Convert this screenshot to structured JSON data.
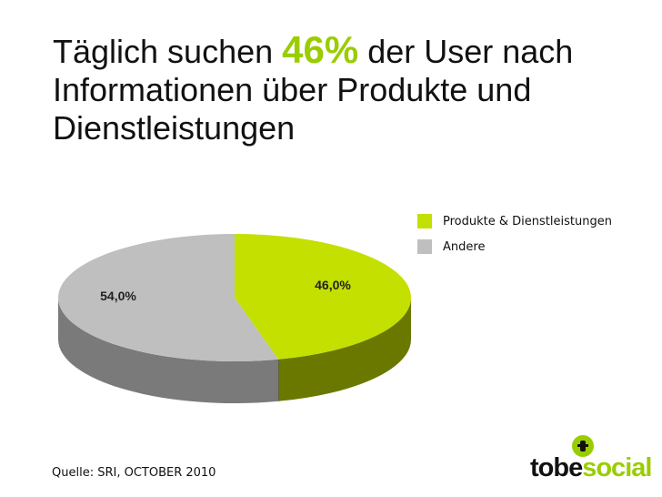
{
  "slide": {
    "title_part1": "Täglich suchen ",
    "title_highlight": "46%",
    "title_part2": " der User nach Informationen über Produkte und Dienstleistungen",
    "source": "Quelle: SRI, OCTOBER 2010"
  },
  "brand": {
    "logo_part1": "tobe",
    "logo_part2": "social",
    "accent": "#9acd00"
  },
  "chart_data": {
    "type": "pie",
    "title": "",
    "slices": [
      {
        "label": "Produkte & Dienstleistungen",
        "value": 46.0,
        "display": "46,0%",
        "color": "#c3e000",
        "side_color": "#6b7800"
      },
      {
        "label": "Andere",
        "value": 54.0,
        "display": "54,0%",
        "color": "#bfbfbf",
        "side_color": "#7a7a7a"
      }
    ],
    "legend_position": "top-right"
  }
}
